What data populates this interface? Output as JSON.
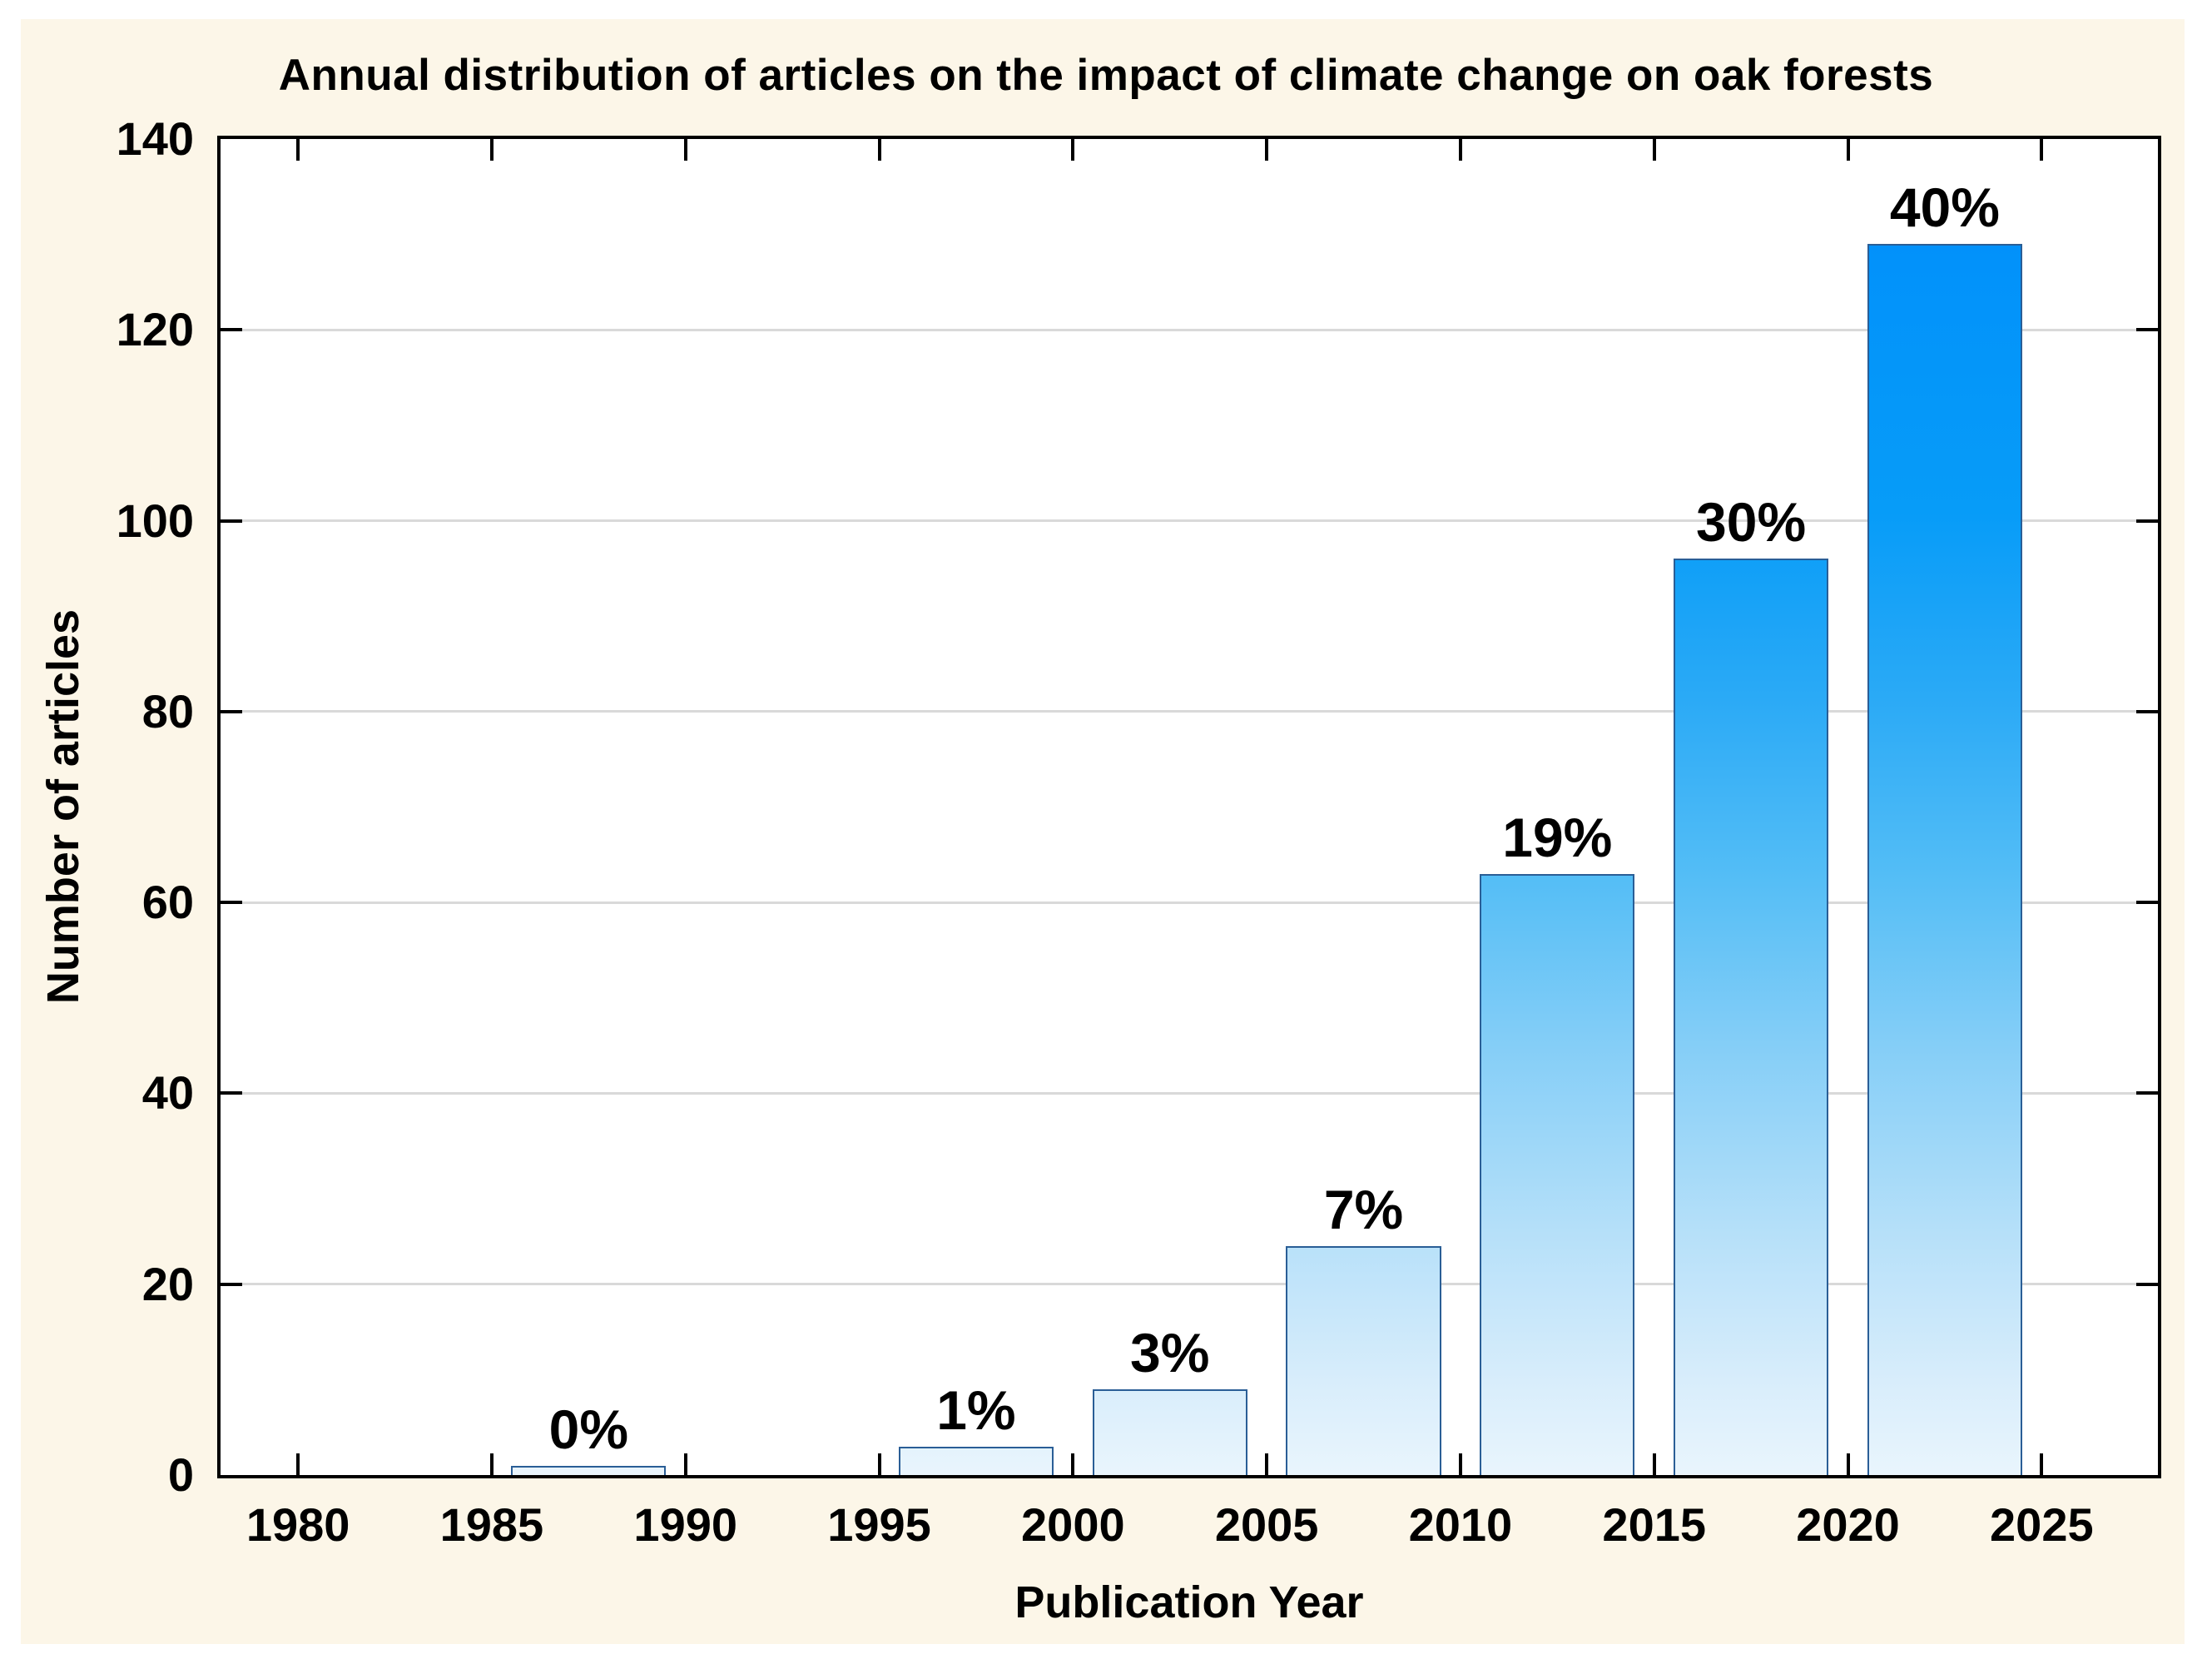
{
  "figure": {
    "panel_color": "#fcf6e8",
    "frame_color": "#000000"
  },
  "chart_data": {
    "type": "bar",
    "title": "Annual distribution of articles on the impact of climate change on oak forests",
    "xlabel": "Publication Year",
    "ylabel": "Number of articles",
    "x_domain": [
      1978,
      2028
    ],
    "ylim": [
      0,
      140
    ],
    "grid": "horizontal-only",
    "grid_color": "#d9d9d9",
    "legend": "none",
    "y_ticks": [
      0,
      20,
      40,
      60,
      80,
      100,
      120,
      140
    ],
    "y_grid_values": [
      20,
      40,
      60,
      80,
      100,
      120
    ],
    "x_ticks": [
      1980,
      1985,
      1990,
      1995,
      2000,
      2005,
      2010,
      2015,
      2020,
      2025
    ],
    "bars": [
      {
        "bin": "1985-1990",
        "center": 1987.5,
        "width_years": 4,
        "value": 1,
        "label": "0%"
      },
      {
        "bin": "1995-2000",
        "center": 1997.5,
        "width_years": 4,
        "value": 3,
        "label": "1%"
      },
      {
        "bin": "2000-2005",
        "center": 2002.5,
        "width_years": 4,
        "value": 9,
        "label": "3%"
      },
      {
        "bin": "2005-2010",
        "center": 2007.5,
        "width_years": 4,
        "value": 24,
        "label": "7%"
      },
      {
        "bin": "2010-2015",
        "center": 2012.5,
        "width_years": 4,
        "value": 63,
        "label": "19%"
      },
      {
        "bin": "2015-2020",
        "center": 2017.5,
        "width_years": 4,
        "value": 96,
        "label": "30%"
      },
      {
        "bin": "2020-2025",
        "center": 2022.5,
        "width_years": 4,
        "value": 129,
        "label": "40%"
      }
    ],
    "bar_style": {
      "border_color": "#2a5e96",
      "gradient_stops": [
        [
          "0%",
          "#0086f9"
        ],
        [
          "9%",
          "#0292fa"
        ],
        [
          "28%",
          "#079cf8"
        ],
        [
          "42%",
          "#2baaf6"
        ],
        [
          "55%",
          "#53bdf6"
        ],
        [
          "68%",
          "#85cef7"
        ],
        [
          "82%",
          "#b6e0f9"
        ],
        [
          "93%",
          "#d8edfb"
        ],
        [
          "100%",
          "#e9f5fd"
        ]
      ]
    }
  }
}
